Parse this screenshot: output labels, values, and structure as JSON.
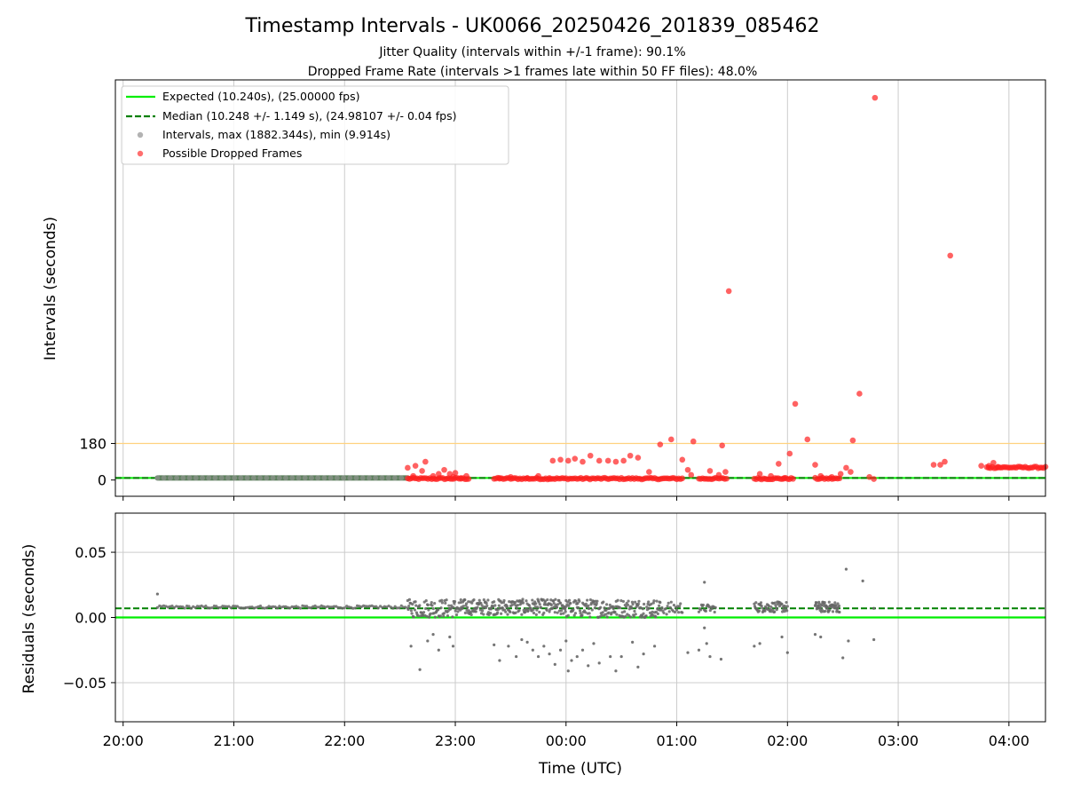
{
  "chart_data": [
    {
      "type": "scatter",
      "title": "Timestamp Intervals - UK0066_20250426_201839_085462",
      "subtitle_lines": [
        "Jitter Quality (intervals within +/-1 frame): 90.1%",
        "Dropped Frame Rate (intervals >1 frames late within 50 FF files): 48.0%"
      ],
      "ylabel": "Intervals (seconds)",
      "yticks": [
        0,
        180
      ],
      "ytick_labels": [
        "0",
        "180"
      ],
      "ylim": [
        -80,
        1970
      ],
      "xlim": [
        19.93,
        28.33
      ],
      "reference_line_y": 180,
      "reference_line_color": "#ffd27f",
      "expected_value": 10.24,
      "median_value": 10.248,
      "grid": true,
      "legend": {
        "position": "top-left",
        "entries": [
          {
            "label": "Expected (10.240s), (25.00000 fps)",
            "style": "solid",
            "color": "#00ee00"
          },
          {
            "label": "Median (10.248 +/- 1.149 s), (24.98107 +/- 0.04 fps)",
            "style": "dashed",
            "color": "#008000"
          },
          {
            "label": "Intervals, max (1882.344s), min (9.914s)",
            "style": "marker",
            "color": "#9a9a9a"
          },
          {
            "label": "Possible Dropped Frames",
            "style": "marker",
            "color": "#ff3030"
          }
        ]
      },
      "intervals_span": [
        20.31,
        22.57
      ],
      "dropped_frames": [
        [
          22.57,
          60
        ],
        [
          22.62,
          20
        ],
        [
          22.64,
          70
        ],
        [
          22.7,
          45
        ],
        [
          22.73,
          90
        ],
        [
          22.8,
          20
        ],
        [
          22.85,
          30
        ],
        [
          22.9,
          50
        ],
        [
          22.95,
          30
        ],
        [
          22.98,
          15
        ],
        [
          23.0,
          35
        ],
        [
          23.05,
          10
        ],
        [
          23.1,
          20
        ],
        [
          23.4,
          10
        ],
        [
          23.5,
          15
        ],
        [
          23.65,
          10
        ],
        [
          23.75,
          20
        ],
        [
          23.85,
          10
        ],
        [
          23.88,
          95
        ],
        [
          23.95,
          100
        ],
        [
          24.02,
          95
        ],
        [
          24.08,
          105
        ],
        [
          24.15,
          90
        ],
        [
          24.22,
          120
        ],
        [
          24.3,
          95
        ],
        [
          24.38,
          95
        ],
        [
          24.45,
          90
        ],
        [
          24.52,
          95
        ],
        [
          24.58,
          120
        ],
        [
          24.65,
          110
        ],
        [
          24.75,
          40
        ],
        [
          24.85,
          175
        ],
        [
          24.95,
          200
        ],
        [
          25.05,
          100
        ],
        [
          25.1,
          50
        ],
        [
          25.13,
          25
        ],
        [
          25.15,
          190
        ],
        [
          25.3,
          45
        ],
        [
          25.38,
          25
        ],
        [
          25.41,
          170
        ],
        [
          25.44,
          40
        ],
        [
          25.47,
          930
        ],
        [
          25.75,
          30
        ],
        [
          25.85,
          20
        ],
        [
          25.92,
          80
        ],
        [
          25.97,
          10
        ],
        [
          26.02,
          130
        ],
        [
          26.07,
          375
        ],
        [
          26.18,
          200
        ],
        [
          26.25,
          75
        ],
        [
          26.3,
          20
        ],
        [
          26.4,
          15
        ],
        [
          26.48,
          30
        ],
        [
          26.53,
          60
        ],
        [
          26.57,
          40
        ],
        [
          26.59,
          195
        ],
        [
          26.65,
          425
        ],
        [
          26.74,
          15
        ],
        [
          26.78,
          5
        ],
        [
          26.79,
          1882
        ],
        [
          27.32,
          75
        ],
        [
          27.38,
          75
        ],
        [
          27.42,
          90
        ],
        [
          27.47,
          1105
        ],
        [
          27.75,
          70
        ],
        [
          27.82,
          70
        ],
        [
          27.86,
          85
        ],
        [
          27.9,
          65
        ]
      ],
      "dropped_runs": [
        [
          22.57,
          23.12,
          5
        ],
        [
          23.35,
          25.05,
          5
        ],
        [
          25.2,
          25.45,
          5
        ],
        [
          25.7,
          26.05,
          5
        ],
        [
          26.25,
          26.47,
          5
        ],
        [
          27.8,
          28.33,
          60
        ]
      ]
    },
    {
      "type": "scatter",
      "xlabel": "Time (UTC)",
      "ylabel": "Residuals (seconds)",
      "xlim": [
        19.93,
        28.33
      ],
      "ylim": [
        -0.08,
        0.08
      ],
      "yticks": [
        -0.05,
        0.0,
        0.05
      ],
      "ytick_labels": [
        "−0.05",
        "0.00",
        "0.05"
      ],
      "xticks": [
        20,
        21,
        22,
        23,
        24,
        25,
        26,
        27,
        28
      ],
      "xtick_labels": [
        "20:00",
        "21:00",
        "22:00",
        "23:00",
        "00:00",
        "01:00",
        "02:00",
        "03:00",
        "04:00"
      ],
      "expected_residual": 0.0,
      "median_residual": 0.007,
      "grid": true,
      "residual_clusters": [
        {
          "x": [
            20.31,
            22.57
          ],
          "y": [
            0.007,
            0.009
          ],
          "n": 120
        },
        {
          "x": [
            22.57,
            23.05
          ],
          "y": [
            0.0,
            0.014
          ],
          "n": 90
        },
        {
          "x": [
            23.05,
            24.0
          ],
          "y": [
            0.002,
            0.014
          ],
          "n": 210
        },
        {
          "x": [
            24.0,
            24.85
          ],
          "y": [
            0.0,
            0.014
          ],
          "n": 170
        },
        {
          "x": [
            24.85,
            25.05
          ],
          "y": [
            0.002,
            0.012
          ],
          "n": 25
        },
        {
          "x": [
            25.2,
            25.35
          ],
          "y": [
            0.004,
            0.01
          ],
          "n": 20
        },
        {
          "x": [
            25.7,
            26.0
          ],
          "y": [
            0.004,
            0.012
          ],
          "n": 60
        },
        {
          "x": [
            26.25,
            26.47
          ],
          "y": [
            0.004,
            0.012
          ],
          "n": 60
        }
      ],
      "outliers": [
        [
          20.31,
          0.018
        ],
        [
          26.53,
          0.037
        ],
        [
          25.25,
          0.027
        ],
        [
          22.6,
          -0.022
        ],
        [
          22.68,
          -0.04
        ],
        [
          22.75,
          -0.018
        ],
        [
          22.8,
          -0.013
        ],
        [
          22.85,
          -0.025
        ],
        [
          22.95,
          -0.015
        ],
        [
          22.98,
          -0.022
        ],
        [
          23.35,
          -0.021
        ],
        [
          23.4,
          -0.033
        ],
        [
          23.48,
          -0.022
        ],
        [
          23.55,
          -0.03
        ],
        [
          23.6,
          -0.017
        ],
        [
          23.65,
          -0.019
        ],
        [
          23.7,
          -0.025
        ],
        [
          23.75,
          -0.03
        ],
        [
          23.8,
          -0.022
        ],
        [
          23.85,
          -0.028
        ],
        [
          23.9,
          -0.036
        ],
        [
          23.95,
          -0.025
        ],
        [
          24.0,
          -0.018
        ],
        [
          24.02,
          -0.041
        ],
        [
          24.05,
          -0.033
        ],
        [
          24.1,
          -0.03
        ],
        [
          24.15,
          -0.025
        ],
        [
          24.2,
          -0.037
        ],
        [
          24.25,
          -0.02
        ],
        [
          24.3,
          -0.035
        ],
        [
          24.4,
          -0.03
        ],
        [
          24.45,
          -0.041
        ],
        [
          24.5,
          -0.03
        ],
        [
          24.6,
          -0.019
        ],
        [
          24.65,
          -0.038
        ],
        [
          24.7,
          -0.028
        ],
        [
          24.8,
          -0.022
        ],
        [
          25.1,
          -0.027
        ],
        [
          25.2,
          -0.025
        ],
        [
          25.25,
          -0.008
        ],
        [
          25.27,
          -0.02
        ],
        [
          25.3,
          -0.03
        ],
        [
          25.4,
          -0.032
        ],
        [
          25.7,
          -0.022
        ],
        [
          25.75,
          -0.02
        ],
        [
          25.95,
          -0.015
        ],
        [
          26.0,
          -0.027
        ],
        [
          26.25,
          -0.013
        ],
        [
          26.3,
          -0.015
        ],
        [
          26.5,
          -0.031
        ],
        [
          26.55,
          -0.018
        ],
        [
          26.78,
          -0.017
        ],
        [
          26.78,
          0.007
        ],
        [
          26.68,
          0.028
        ]
      ]
    }
  ]
}
